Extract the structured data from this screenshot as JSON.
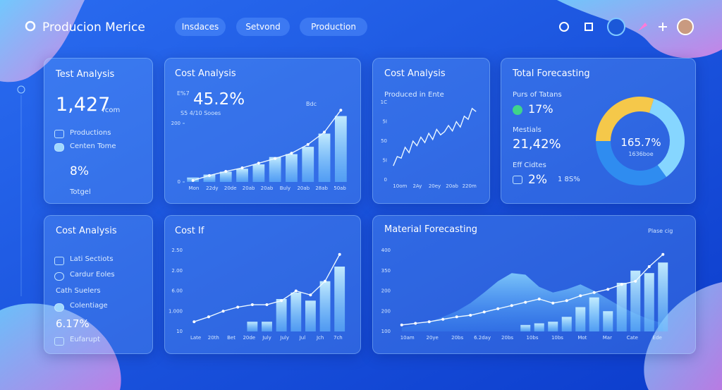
{
  "header": {
    "title": "Producion Merice",
    "menu": [
      "Insdaces",
      "Setvond",
      "Production"
    ]
  },
  "panels": [
    {
      "title": "Test Analysis",
      "value": "1,427",
      "unit": "rcom",
      "items": [
        "Productions",
        "Centen Tome"
      ],
      "percent": "8%",
      "footer": "Totgel"
    },
    {
      "title": "Cost Analysis",
      "kicker": "E%7",
      "value": "45.2%",
      "note": "S5 4/10 Sooes",
      "legend": "Bdc",
      "chart": {
        "yticks": [
          200,
          0
        ],
        "ylim": [
          0,
          260
        ],
        "xlabels": [
          "Mon",
          "22dy",
          "20de",
          "20ab",
          "20ab",
          "Buly",
          "20ab",
          "28ab",
          "50ab"
        ],
        "bars": [
          15,
          25,
          35,
          45,
          60,
          85,
          95,
          120,
          165,
          225
        ],
        "line": [
          5,
          22,
          36,
          48,
          64,
          80,
          98,
          128,
          170,
          245
        ]
      }
    },
    {
      "title": "Cost Analysis",
      "subtitle": "Produced in Ente",
      "chart": {
        "ylabels": [
          "1C",
          "5I",
          "50",
          "5I",
          "0"
        ],
        "ylim": [
          0,
          100
        ],
        "xlabels": [
          "10om",
          "2Ay",
          "20ey",
          "20ab",
          "220m"
        ],
        "line": [
          18,
          30,
          28,
          42,
          35,
          50,
          44,
          55,
          48,
          60,
          52,
          65,
          58,
          62,
          70,
          63,
          75,
          68,
          82,
          78,
          92,
          88
        ]
      }
    },
    {
      "title": "Total Forecasting",
      "rows": [
        {
          "label": "Purs of Tatans",
          "value": "17%"
        },
        {
          "label": "Mestials",
          "value": "21,42%"
        },
        {
          "label": "Eff Cidtes",
          "value": "2%",
          "extra": "1 8S%"
        }
      ],
      "donut": {
        "values": [
          30,
          35,
          35
        ],
        "colors": [
          "#f5c84a",
          "#86d6ff",
          "#2f8cf0"
        ],
        "center": "165.7%",
        "center_sub": "1636boe"
      }
    },
    {
      "title": "Cost Analysis",
      "items": [
        "Lati Sectiots",
        "Cardur Eoles",
        "Cath Suelers",
        "Colentiage"
      ],
      "value": "6.17%",
      "footer": "Eufarupt"
    },
    {
      "title": "Cost If",
      "chart": {
        "ylabels": [
          "2.50",
          "2.00",
          "6.00",
          "1.000",
          "10"
        ],
        "ylim": [
          0,
          100
        ],
        "xlabels": [
          "Late",
          "20th",
          "Bet",
          "20de",
          "July",
          "July",
          "Jul",
          "Jch",
          "7ch"
        ],
        "bars": [
          null,
          null,
          null,
          null,
          12,
          12,
          40,
          48,
          38,
          62,
          80
        ],
        "line": [
          12,
          18,
          25,
          30,
          33,
          33,
          38,
          50,
          45,
          62,
          95
        ]
      }
    },
    {
      "title": "Material Forecasting",
      "legend": "Plase cig",
      "chart": {
        "ylabels": [
          "400",
          "350",
          "200",
          "200",
          "100"
        ],
        "ylim": [
          0,
          100
        ],
        "xlabels": [
          "10am",
          "20ye",
          "20bs",
          "6.2day",
          "20bs",
          "10bs",
          "10bs",
          "Mot",
          "Mar",
          "Cate",
          "Ede"
        ],
        "area": [
          5,
          8,
          12,
          18,
          25,
          35,
          48,
          62,
          72,
          70,
          55,
          48,
          52,
          58,
          50,
          40,
          30,
          22,
          15,
          10
        ],
        "bars": [
          null,
          null,
          null,
          null,
          null,
          null,
          null,
          null,
          null,
          8,
          10,
          12,
          18,
          30,
          42,
          25,
          60,
          75,
          72,
          85
        ],
        "line": [
          8,
          10,
          12,
          15,
          18,
          20,
          24,
          28,
          32,
          36,
          40,
          35,
          38,
          44,
          48,
          52,
          58,
          62,
          80,
          95
        ]
      }
    }
  ]
}
